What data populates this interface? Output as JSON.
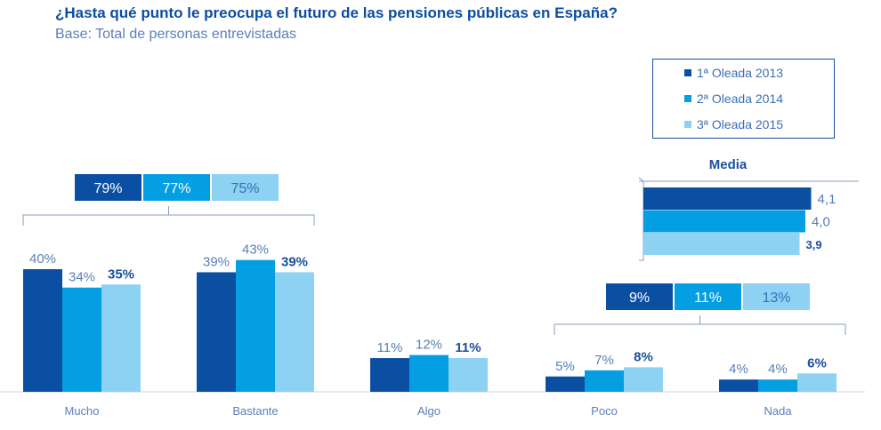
{
  "title": "¿Hasta qué punto le preocupa el futuro de las pensiones públicas en España?",
  "subtitle": "Base:  Total de personas entrevistadas",
  "colors": {
    "s1": "#0b4fa3",
    "s2": "#049fe2",
    "s3": "#8dd1f3",
    "text": "#5a7fb8",
    "dark": "#1c4f9c"
  },
  "chart_data": [
    {
      "type": "bar",
      "categories": [
        "Mucho",
        "Bastante",
        "Algo",
        "Poco",
        "Nada"
      ],
      "series": [
        {
          "name": "1ª Oleada 2013",
          "values": [
            40,
            39,
            11,
            5,
            4
          ],
          "labels": [
            "40%",
            "39%",
            "11%",
            "5%",
            "4%"
          ]
        },
        {
          "name": "2ª Oleada 2014",
          "values": [
            34,
            43,
            12,
            7,
            4
          ],
          "labels": [
            "34%",
            "43%",
            "12%",
            "7%",
            "4%"
          ]
        },
        {
          "name": "3ª Oleada 2015",
          "values": [
            35,
            39,
            11,
            8,
            6
          ],
          "labels": [
            "35%",
            "39%",
            "11%",
            "8%",
            "6%"
          ]
        }
      ],
      "legend": "top-right",
      "grid": false,
      "groups": [
        {
          "covers": [
            "Mucho",
            "Bastante"
          ],
          "labels": [
            "79%",
            "77%",
            "75%"
          ]
        },
        {
          "covers": [
            "Poco",
            "Nada"
          ],
          "labels": [
            "9%",
            "11%",
            "13%"
          ]
        }
      ]
    },
    {
      "type": "bar",
      "orientation": "horizontal",
      "title": "Media",
      "series": [
        {
          "name": "1ª Oleada 2013",
          "value": 4.1,
          "label": "4,1"
        },
        {
          "name": "2ª Oleada 2014",
          "value": 4.0,
          "label": "4,0"
        },
        {
          "name": "3ª Oleada 2015",
          "value": 3.9,
          "label": "3,9"
        }
      ]
    }
  ]
}
